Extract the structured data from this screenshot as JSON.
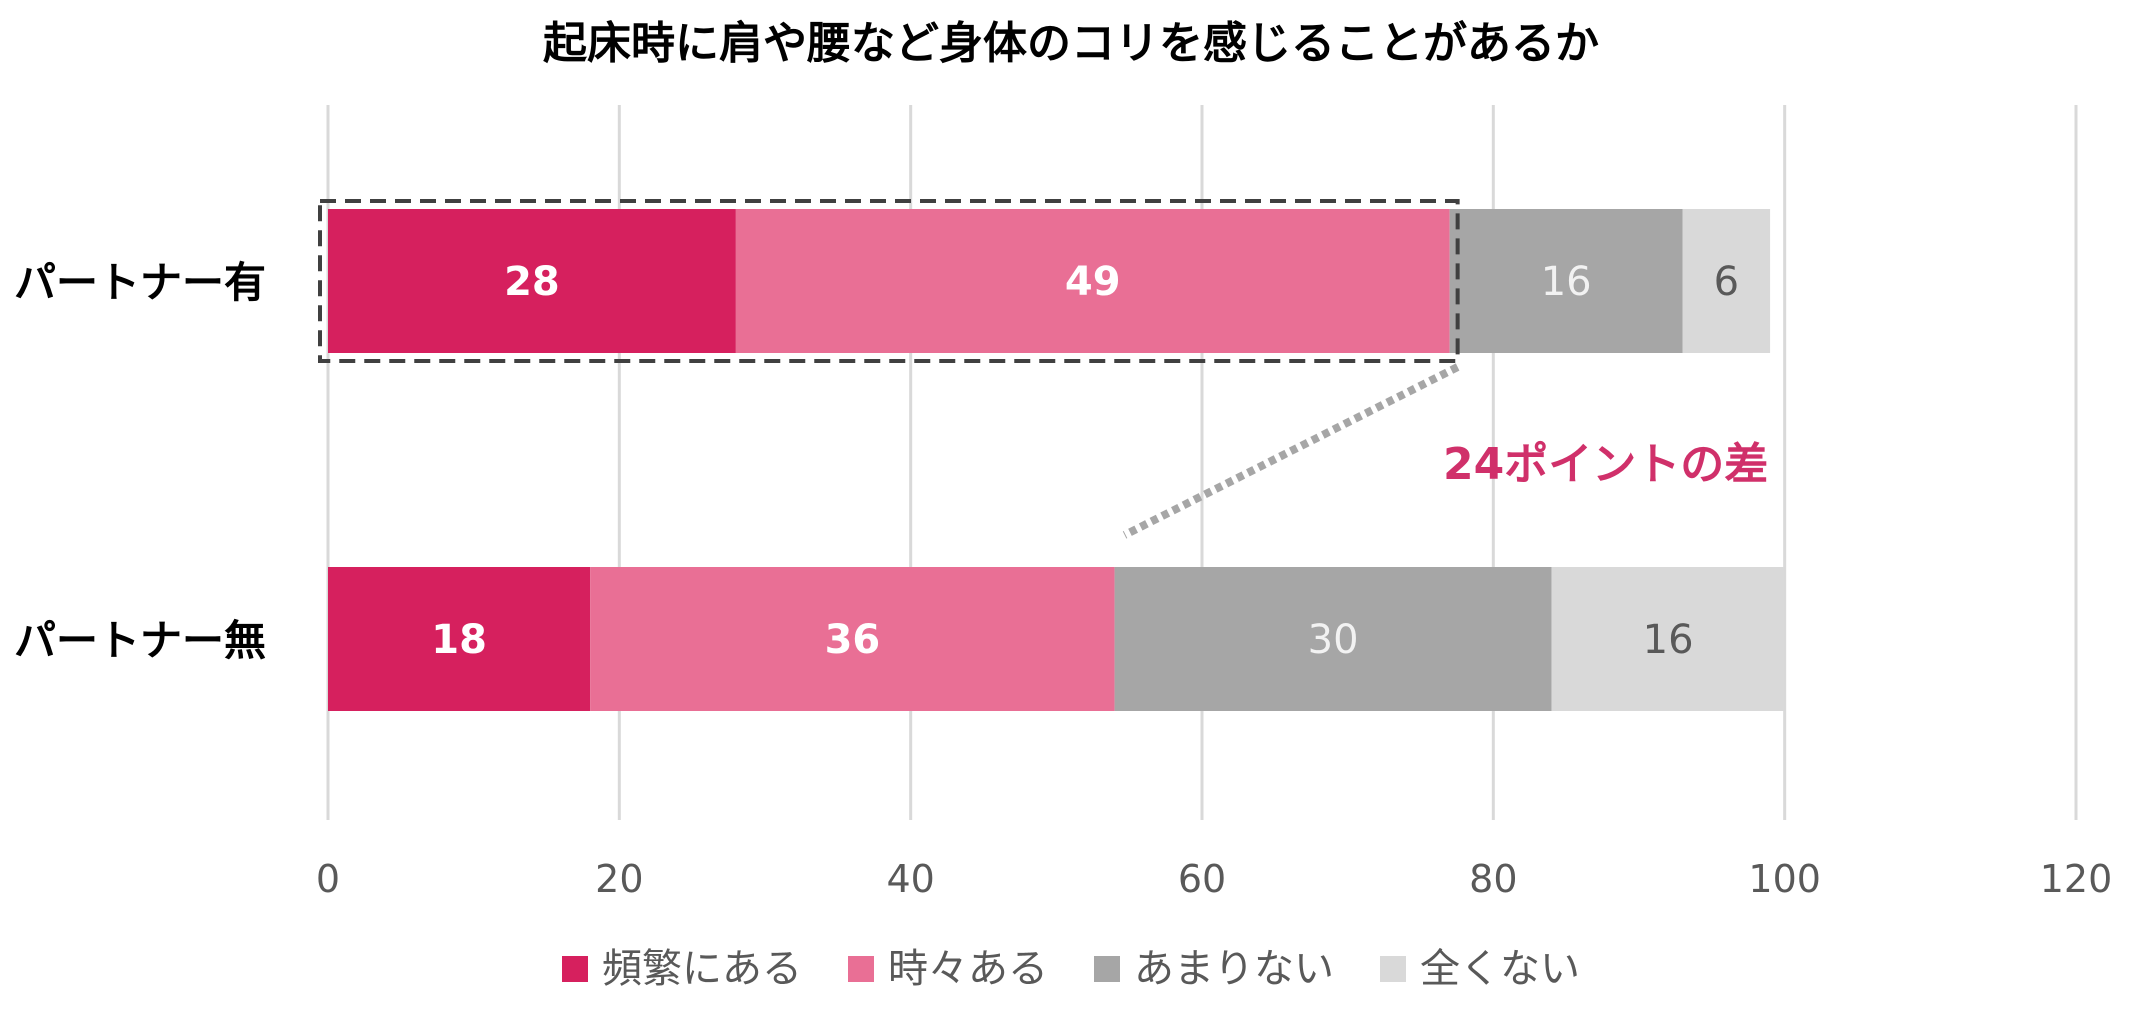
{
  "chart_data": {
    "type": "bar",
    "orientation": "horizontal",
    "stacked": true,
    "title": "起床時に肩や腰など身体のコリを感じることがあるか",
    "categories": [
      "パートナー有",
      "パートナー無"
    ],
    "series": [
      {
        "name": "頻繁にある",
        "values": [
          28,
          18
        ],
        "color": "#D6205E",
        "label_color": "#ffffff"
      },
      {
        "name": "時々ある",
        "values": [
          49,
          36
        ],
        "color": "#E96F95",
        "label_color": "#ffffff"
      },
      {
        "name": "あまりない",
        "values": [
          16,
          30
        ],
        "color": "#A6A6A6",
        "label_color": "#f2f2f2"
      },
      {
        "name": "全くない",
        "values": [
          6,
          16
        ],
        "color": "#D9D9D9",
        "label_color": "#595959"
      }
    ],
    "xlim": [
      0,
      120
    ],
    "xticks": [
      "0",
      "20",
      "40",
      "60",
      "80",
      "100",
      "120"
    ],
    "grid": true,
    "legend_position": "bottom",
    "annotation": {
      "text": "24ポイントの差",
      "color": "#D0306A",
      "highlight_category": "パートナー有",
      "highlight_from": 0,
      "highlight_to": 77,
      "connector_to_category": "パートナー無",
      "connector_to_value": 54
    }
  }
}
